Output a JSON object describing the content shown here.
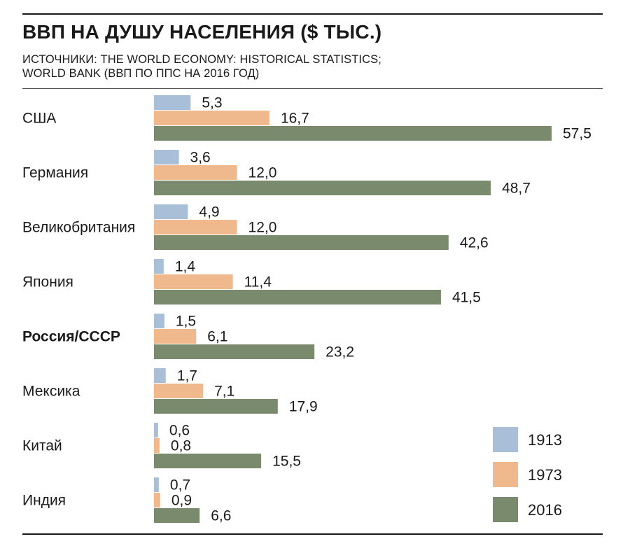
{
  "header": {
    "title": "ВВП НА ДУШУ НАСЕЛЕНИЯ ($ ТЫС.)",
    "subtitle_line1": "ИСТОЧНИКИ: THE WORLD ECONOMY: HISTORICAL STATISTICS;",
    "subtitle_line2": "WORLD BANK (ВВП ПО ППС НА 2016 ГОД)"
  },
  "chart_data": {
    "type": "bar",
    "orientation": "horizontal",
    "title": "ВВП НА ДУШУ НАСЕЛЕНИЯ ($ ТЫС.)",
    "categories": [
      "США",
      "Германия",
      "Великобритания",
      "Япония",
      "Россия/СССР",
      "Мексика",
      "Китай",
      "Индия"
    ],
    "highlighted_category": "Россия/СССР",
    "series": [
      {
        "name": "1913",
        "color": "#a9bfd8",
        "values": [
          5.3,
          3.6,
          4.9,
          1.4,
          1.5,
          1.7,
          0.6,
          0.7
        ],
        "labels": [
          "5,3",
          "3,6",
          "4,9",
          "1,4",
          "1,5",
          "1,7",
          "0,6",
          "0,7"
        ]
      },
      {
        "name": "1973",
        "color": "#f0b98d",
        "values": [
          16.7,
          12.0,
          12.0,
          11.4,
          6.1,
          7.1,
          0.8,
          0.9
        ],
        "labels": [
          "16,7",
          "12,0",
          "12,0",
          "11,4",
          "6,1",
          "7,1",
          "0,8",
          "0,9"
        ]
      },
      {
        "name": "2016",
        "color": "#7a8b6d",
        "values": [
          57.5,
          48.7,
          42.6,
          41.5,
          23.2,
          17.9,
          15.5,
          6.6
        ],
        "labels": [
          "57,5",
          "48,7",
          "42,6",
          "41,5",
          "23,2",
          "17,9",
          "15,5",
          "6,6"
        ]
      }
    ],
    "xlim": [
      0,
      57.5
    ],
    "grid": false,
    "legend_position": "bottom-right"
  }
}
